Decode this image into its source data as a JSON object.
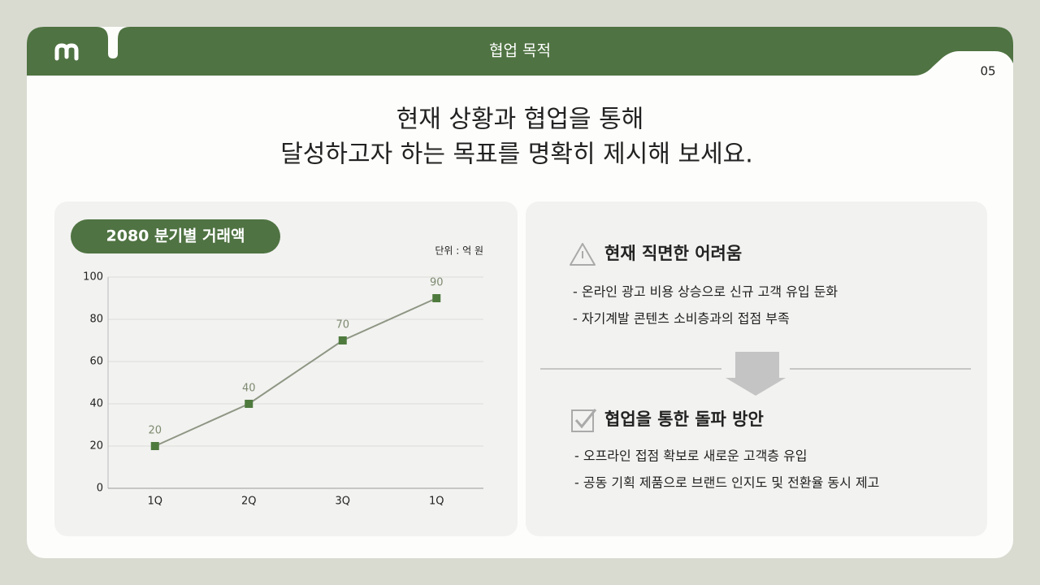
{
  "header": {
    "title": "협업 목적",
    "page_number": "05"
  },
  "headline": [
    "현재 상황과 협업을 통해",
    "달성하고자 하는 목표를 명확히 제시해 보세요."
  ],
  "chart_data": {
    "type": "line",
    "title": "2080 분기별 거래액",
    "unit_label": "단위 : 억 원",
    "categories": [
      "1Q",
      "2Q",
      "3Q",
      "1Q"
    ],
    "values": [
      20,
      40,
      70,
      90
    ],
    "color": "#4e7a3e",
    "line_color": "#8e9684",
    "ylim": [
      0,
      100
    ],
    "yticks": [
      0,
      20,
      40,
      60,
      80,
      100
    ],
    "grid": true
  },
  "problems": {
    "heading": "현재 직면한 어려움",
    "items": [
      "- 온라인 광고 비용 상승으로 신규 고객 유입 둔화",
      "- 자기계발 콘텐츠 소비층과의 접점 부족"
    ]
  },
  "solutions": {
    "heading": "협업을 통한 돌파 방안",
    "items": [
      "-  오프라인 접점 확보로 새로운 고객층 유입",
      "-  공동 기획 제품으로 브랜드 인지도 및 전환율 동시 제고"
    ]
  }
}
